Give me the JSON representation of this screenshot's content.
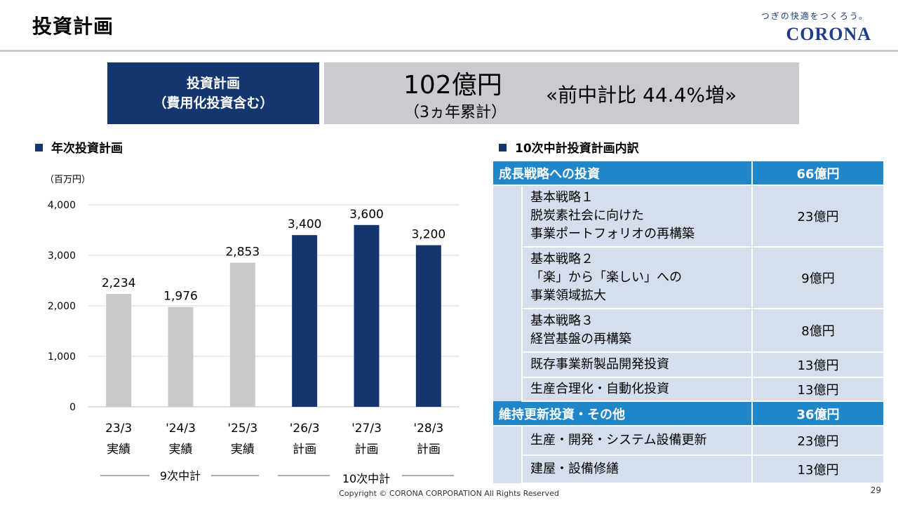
{
  "header": {
    "title": "投資計画",
    "tagline": "つぎの快適をつくろう。",
    "logo_text": "CORONA"
  },
  "summary": {
    "label_line1": "投資計画",
    "label_line2": "（費用化投資含む）",
    "amount": "102億円",
    "cumulative": "（3ヵ年累計）",
    "comparison": "«前中計比  44.4%増»"
  },
  "left_section": {
    "title": "年次投資計画",
    "unit": "（百万円）",
    "group1_label": "9次中計",
    "group2_label": "10次中計"
  },
  "chart_data": {
    "type": "bar",
    "categories": [
      "23/3",
      "'24/3",
      "'25/3",
      "'26/3",
      "'27/3",
      "'28/3"
    ],
    "category_sublabels": [
      "実績",
      "実績",
      "実績",
      "計画",
      "計画",
      "計画"
    ],
    "values": [
      2234,
      1976,
      2853,
      3400,
      3600,
      3200
    ],
    "value_labels": [
      "2,234",
      "1,976",
      "2,853",
      "3,400",
      "3,600",
      "3,200"
    ],
    "bar_colors": [
      "#c8c9cb",
      "#c8c9cb",
      "#c8c9cb",
      "#14366f",
      "#14366f",
      "#14366f"
    ],
    "ylim": [
      0,
      4000
    ],
    "yticks": [
      0,
      1000,
      2000,
      3000,
      4000
    ],
    "ytick_labels": [
      "0",
      "1,000",
      "2,000",
      "3,000",
      "4,000"
    ],
    "ylabel": "（百万円）",
    "grid": true
  },
  "right_section": {
    "title": "10次中計投資計画内訳",
    "groups": [
      {
        "label": "成長戦略への投資",
        "amount": "66億円",
        "items": [
          {
            "lines": [
              "基本戦略１",
              "脱炭素社会に向けた",
              "事業ポートフォリオの再構築"
            ],
            "amount": "23億円"
          },
          {
            "lines": [
              "基本戦略２",
              "「楽」から「楽しい」への",
              "事業領域拡大"
            ],
            "amount": "9億円"
          },
          {
            "lines": [
              "基本戦略３",
              "経営基盤の再構築"
            ],
            "amount": "8億円"
          },
          {
            "lines": [
              "既存事業新製品開発投資"
            ],
            "amount": "13億円"
          },
          {
            "lines": [
              "生産合理化・自動化投資"
            ],
            "amount": "13億円"
          }
        ]
      },
      {
        "label": "維持更新投資・その他",
        "amount": "36億円",
        "items": [
          {
            "lines": [
              "生産・開発・システム設備更新"
            ],
            "amount": "23億円"
          },
          {
            "lines": [
              "建屋・設備修繕"
            ],
            "amount": "13億円"
          }
        ]
      }
    ]
  },
  "colors": {
    "navy": "#14366f",
    "blue_header": "#1f86c9",
    "light_blue_cell": "#d4deed",
    "gray": "#c8c9cb"
  },
  "footer": {
    "copyright": "Copyright © CORONA CORPORATION All Rights Reserved",
    "page_number": "29"
  }
}
